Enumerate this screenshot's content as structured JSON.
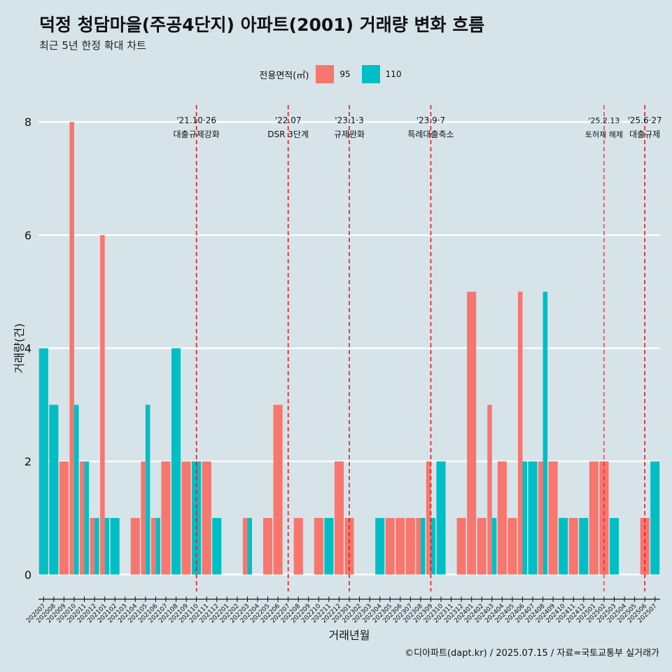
{
  "chart_data": {
    "type": "bar",
    "title": "덕정 청담마을(주공4단지) 아파트(2001) 거래량 변화 흐름",
    "subtitle": "최근 5년 한정 확대 차트",
    "xlabel": "거래년월",
    "ylabel": "거래량(건)",
    "ylim": [
      -0.3,
      8.3
    ],
    "yticks": [
      0,
      2,
      4,
      6,
      8
    ],
    "legend_title": "전용면적(㎡)",
    "legend_position": "top-center",
    "caption": "©디아파트(dapt.kr) / 2025.07.15 / 자료=국토교통부 실거래가",
    "categories": [
      "202007",
      "202008",
      "202009",
      "202010",
      "202011",
      "202012",
      "202101",
      "202102",
      "202103",
      "202104",
      "202105",
      "202106",
      "202107",
      "202108",
      "202109",
      "202110",
      "202111",
      "202112",
      "202201",
      "202202",
      "202203",
      "202204",
      "202205",
      "202206",
      "202207",
      "202208",
      "202209",
      "202210",
      "202211",
      "202212",
      "202301",
      "202302",
      "202303",
      "202304",
      "202305",
      "202306",
      "202307",
      "202308",
      "202309",
      "202310",
      "202311",
      "202312",
      "202401",
      "202402",
      "202403",
      "202404",
      "202405",
      "202406",
      "202407",
      "202408",
      "202409",
      "202410",
      "202411",
      "202412",
      "202501",
      "202502",
      "202503",
      "202504",
      "202505",
      "202506",
      "202507"
    ],
    "series": [
      {
        "name": "95",
        "color": "#f8766d",
        "values": [
          0,
          0,
          2,
          8,
          2,
          1,
          6,
          0,
          0,
          1,
          2,
          1,
          2,
          0,
          2,
          0,
          2,
          0,
          0,
          0,
          1,
          0,
          1,
          3,
          0,
          1,
          0,
          1,
          0,
          2,
          1,
          0,
          0,
          0,
          1,
          1,
          1,
          1,
          2,
          0,
          0,
          1,
          5,
          1,
          3,
          2,
          1,
          5,
          0,
          2,
          2,
          0,
          1,
          0,
          2,
          2,
          0,
          0,
          0,
          1,
          0
        ]
      },
      {
        "name": "110",
        "color": "#00bfc4",
        "values": [
          4,
          3,
          0,
          3,
          2,
          1,
          1,
          1,
          0,
          0,
          3,
          1,
          0,
          4,
          0,
          2,
          0,
          1,
          0,
          0,
          1,
          0,
          0,
          0,
          0,
          0,
          0,
          0,
          1,
          0,
          0,
          0,
          0,
          1,
          0,
          0,
          0,
          1,
          1,
          2,
          0,
          0,
          0,
          0,
          1,
          0,
          0,
          2,
          2,
          5,
          0,
          1,
          0,
          1,
          0,
          0,
          1,
          0,
          0,
          0,
          2
        ]
      }
    ],
    "annotations": [
      {
        "category": "202110",
        "date": "'21.10·26",
        "label": "대출규제강화"
      },
      {
        "category": "202207",
        "date": "'22.07",
        "label": "DSR 3단계"
      },
      {
        "category": "202301",
        "date": "'23.1·3",
        "label": "규제완화"
      },
      {
        "category": "202309",
        "date": "'23.9·7",
        "label": "특례대출축소"
      },
      {
        "category": "202502",
        "date": "'25.2.13",
        "label": "토허제 해제"
      },
      {
        "category": "202506",
        "date": "'25.6·27",
        "label": "대출규제"
      }
    ]
  }
}
